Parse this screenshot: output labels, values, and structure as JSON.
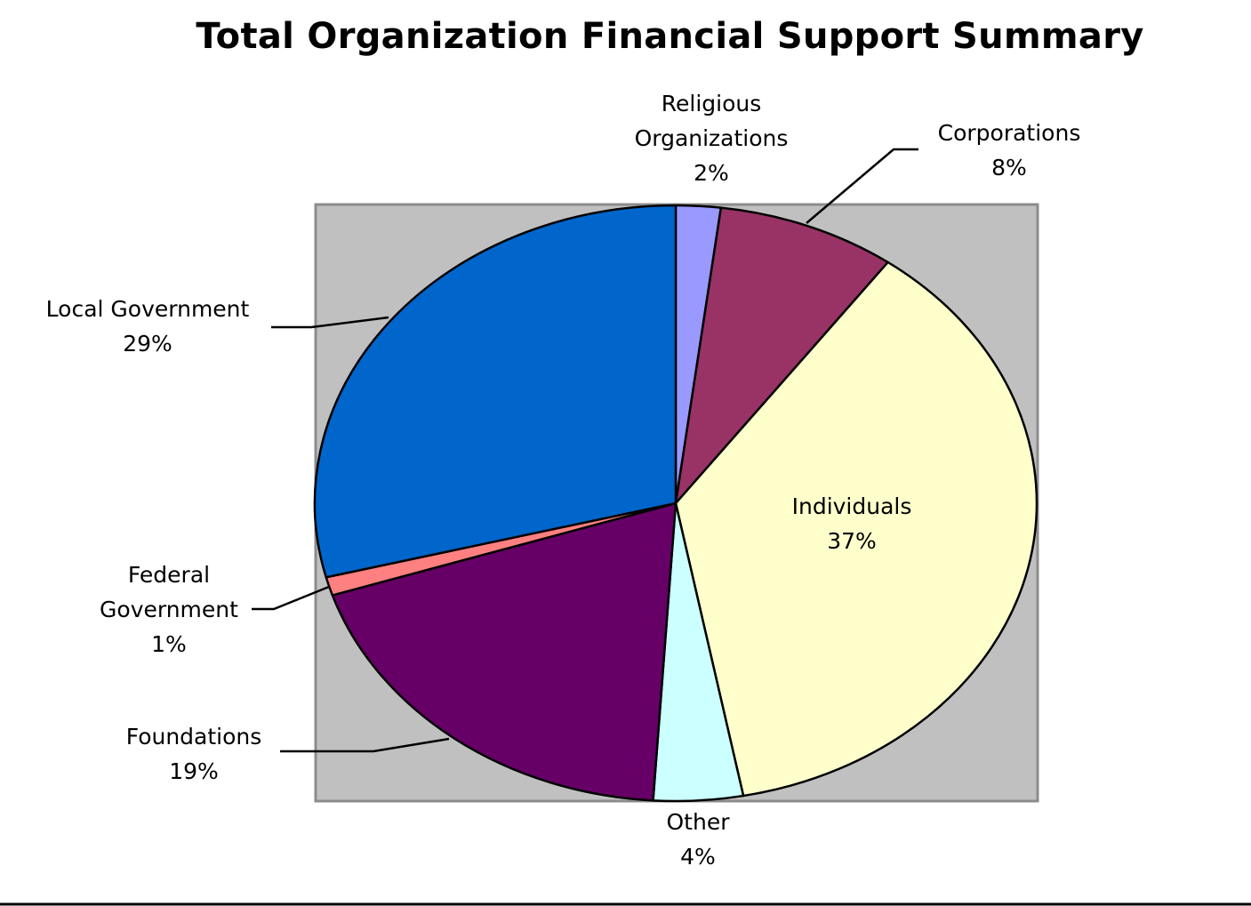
{
  "chart_data": {
    "type": "pie",
    "title": "Total Organization Financial Support Summary",
    "slices": [
      {
        "name": "Religious Organizations",
        "label_lines": [
          "Religious",
          "Organizations"
        ],
        "value": 2,
        "label": "2%",
        "color": "#9999ff"
      },
      {
        "name": "Corporations",
        "label_lines": [
          "Corporations"
        ],
        "value": 8,
        "label": "8%",
        "color": "#993366"
      },
      {
        "name": "Individuals",
        "label_lines": [
          "Individuals"
        ],
        "value": 37,
        "label": "37%",
        "color": "#ffffcc"
      },
      {
        "name": "Other",
        "label_lines": [
          "Other"
        ],
        "value": 4,
        "label": "4%",
        "color": "#ccffff"
      },
      {
        "name": "Foundations",
        "label_lines": [
          "Foundations"
        ],
        "value": 19,
        "label": "19%",
        "color": "#660066"
      },
      {
        "name": "Federal Government",
        "label_lines": [
          "Federal",
          "Government"
        ],
        "value": 1,
        "label": "1%",
        "color": "#ff8080"
      },
      {
        "name": "Local Government",
        "label_lines": [
          "Local Government"
        ],
        "value": 29,
        "label": "29%",
        "color": "#0066cc"
      }
    ],
    "start_direction": "top",
    "direction": "clockwise",
    "plot_area_color": "#c0c0c0",
    "legend": "none",
    "data_labels": "outside with leader lines"
  }
}
